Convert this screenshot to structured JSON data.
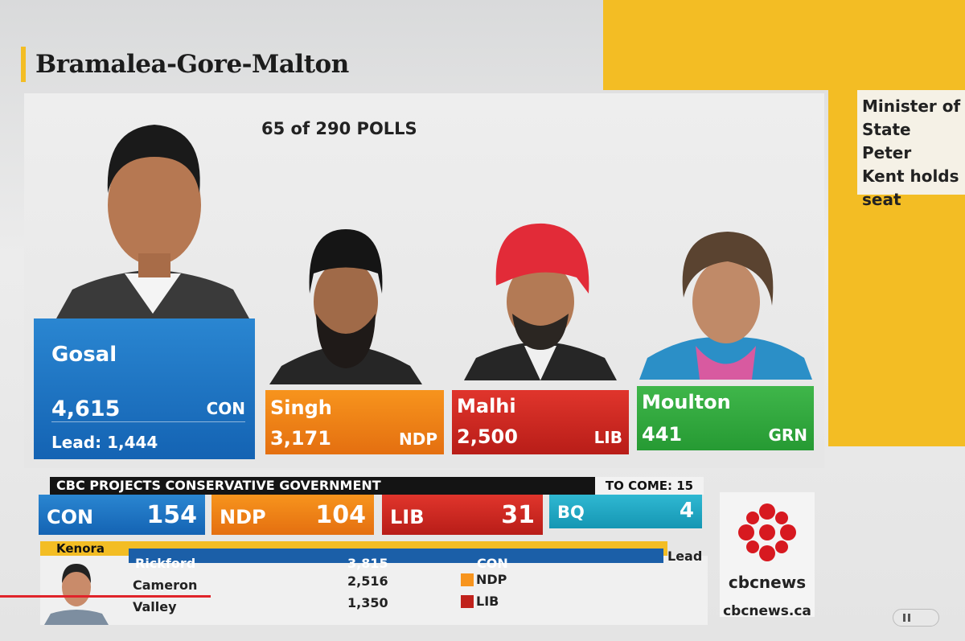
{
  "header": {
    "title": "Bramalea-Gore-Malton",
    "polls": "65 of 290 POLLS"
  },
  "candidates": [
    {
      "name": "Gosal",
      "votes": "4,615",
      "party": "CON",
      "lead": "Lead: 1,444"
    },
    {
      "name": "Singh",
      "votes": "3,171",
      "party": "NDP"
    },
    {
      "name": "Malhi",
      "votes": "2,500",
      "party": "LIB"
    },
    {
      "name": "Moulton",
      "votes": "441",
      "party": "GRN"
    }
  ],
  "projection": {
    "banner": "CBC PROJECTS CONSERVATIVE GOVERNMENT",
    "to_come": "TO COME: 15",
    "seats": [
      {
        "party": "CON",
        "seats": "154"
      },
      {
        "party": "NDP",
        "seats": "104"
      },
      {
        "party": "LIB",
        "seats": "31"
      },
      {
        "party": "BQ",
        "seats": "4"
      }
    ]
  },
  "riding": {
    "name": "Kenora",
    "status": "Lead",
    "rows": [
      {
        "name": "Rickford",
        "votes": "3,815",
        "party": "CON"
      },
      {
        "name": "Cameron",
        "votes": "2,516",
        "party": "NDP"
      },
      {
        "name": "Valley",
        "votes": "1,350",
        "party": "LIB"
      }
    ]
  },
  "side_note": [
    "Minister of",
    "State Peter",
    "Kent holds",
    "seat"
  ],
  "brand": {
    "logo": "cbcnews",
    "url": "cbcnews.ca"
  }
}
